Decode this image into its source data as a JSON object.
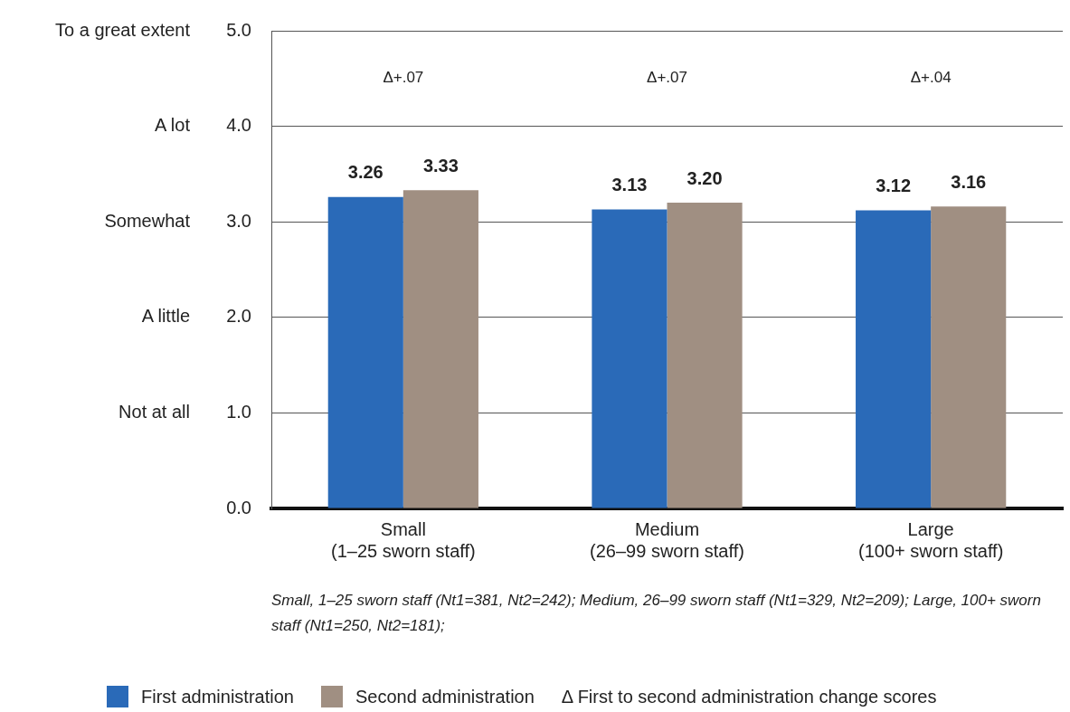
{
  "chart_data": {
    "type": "bar",
    "categories": [
      "Small\n(1–25 sworn staff)",
      "Medium\n(26–99 sworn staff)",
      "Large\n(100+ sworn staff)"
    ],
    "series": [
      {
        "name": "First administration",
        "color": "#2a6ab8",
        "values": [
          3.26,
          3.13,
          3.12
        ],
        "value_labels": [
          "3.26",
          "3.13",
          "3.12"
        ]
      },
      {
        "name": "Second administration",
        "color": "#a08f82",
        "values": [
          3.33,
          3.2,
          3.16
        ],
        "value_labels": [
          "3.33",
          "3.20",
          "3.16"
        ]
      }
    ],
    "ylim": [
      0,
      5
    ],
    "yticks": [
      {
        "value": 0,
        "label": "0.0"
      },
      {
        "value": 1,
        "label": "1.0"
      },
      {
        "value": 2,
        "label": "2.0"
      },
      {
        "value": 3,
        "label": "3.0"
      },
      {
        "value": 4,
        "label": "4.0"
      },
      {
        "value": 5,
        "label": "5.0"
      }
    ],
    "y2_categories": [
      "To a great extent",
      "A lot",
      "Somewhat",
      "A little",
      "Not at all",
      null
    ],
    "grid": "y",
    "legend": "bottom",
    "annotations": [
      "Δ+.07",
      "Δ+.07",
      "Δ+.04",
      "Small, 1–25 sworn staff (Nt1=381, Nt2=242); Medium, 26–99 sworn staff (Nt1=329, Nt2=209); Large, 100+ sworn staff (Nt1=250, Nt2=181);",
      "Δ First to second administration change scores"
    ]
  }
}
